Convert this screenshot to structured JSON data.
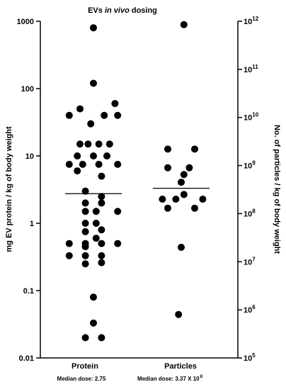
{
  "chart_data": {
    "type": "scatter",
    "title": "EVs in vivo dosing",
    "title_parts": {
      "plain": "EVs ",
      "italic": "in vivo",
      "tail": " dosing"
    },
    "ylabel_left": "mg EV protein / kg of body weight",
    "ylabel_right": "No. of particles / kg of body weight",
    "categories": [
      "Protein",
      "Particles"
    ],
    "left_axis": {
      "scale": "log",
      "ylim": [
        0.01,
        1000
      ],
      "ticks": [
        {
          "value": 0.01,
          "label": "0.01"
        },
        {
          "value": 0.1,
          "label": "0.1"
        },
        {
          "value": 1,
          "label": "1"
        },
        {
          "value": 10,
          "label": "10"
        },
        {
          "value": 100,
          "label": "100"
        },
        {
          "value": 1000,
          "label": "1000"
        }
      ]
    },
    "right_axis": {
      "scale": "log",
      "ylim": [
        100000,
        1000000000000
      ],
      "ticks": [
        {
          "value": 100000,
          "base": "10",
          "exp": "5"
        },
        {
          "value": 1000000,
          "base": "10",
          "exp": "6"
        },
        {
          "value": 10000000,
          "base": "10",
          "exp": "7"
        },
        {
          "value": 100000000,
          "base": "10",
          "exp": "8"
        },
        {
          "value": 1000000000,
          "base": "10",
          "exp": "9"
        },
        {
          "value": 10000000000,
          "base": "10",
          "exp": "10"
        },
        {
          "value": 100000000000,
          "base": "10",
          "exp": "11"
        },
        {
          "value": 1000000000000,
          "base": "10",
          "exp": "12"
        }
      ]
    },
    "series": [
      {
        "category": "Protein",
        "axis": "left",
        "median": 2.75,
        "points": [
          {
            "x": 0,
            "y": 800
          },
          {
            "x": 0,
            "y": 120
          },
          {
            "x": 0.8,
            "y": 60
          },
          {
            "x": -0.5,
            "y": 50
          },
          {
            "x": -0.9,
            "y": 40
          },
          {
            "x": 0.4,
            "y": 40
          },
          {
            "x": 0.9,
            "y": 40
          },
          {
            "x": -0.1,
            "y": 30
          },
          {
            "x": -0.5,
            "y": 15
          },
          {
            "x": -0.2,
            "y": 15
          },
          {
            "x": 0.2,
            "y": 15
          },
          {
            "x": 0.6,
            "y": 15
          },
          {
            "x": -0.6,
            "y": 10
          },
          {
            "x": 0,
            "y": 10
          },
          {
            "x": 0.5,
            "y": 10
          },
          {
            "x": -0.9,
            "y": 7.5
          },
          {
            "x": -0.4,
            "y": 7.5
          },
          {
            "x": 0.2,
            "y": 7.5
          },
          {
            "x": 0.9,
            "y": 7.5
          },
          {
            "x": -0.6,
            "y": 6
          },
          {
            "x": 0.3,
            "y": 5
          },
          {
            "x": -0.3,
            "y": 3
          },
          {
            "x": 0.3,
            "y": 2.5
          },
          {
            "x": -0.3,
            "y": 2
          },
          {
            "x": 0.3,
            "y": 2
          },
          {
            "x": -0.3,
            "y": 1.5
          },
          {
            "x": 0.1,
            "y": 1.5
          },
          {
            "x": 0.9,
            "y": 1.5
          },
          {
            "x": -0.3,
            "y": 1
          },
          {
            "x": 0.1,
            "y": 1
          },
          {
            "x": -0.3,
            "y": 0.75
          },
          {
            "x": 0.3,
            "y": 0.8
          },
          {
            "x": 0.1,
            "y": 0.6
          },
          {
            "x": -0.9,
            "y": 0.5
          },
          {
            "x": -0.3,
            "y": 0.5
          },
          {
            "x": 0.3,
            "y": 0.5
          },
          {
            "x": 0.9,
            "y": 0.5
          },
          {
            "x": -0.3,
            "y": 0.45
          },
          {
            "x": -0.9,
            "y": 0.33
          },
          {
            "x": -0.3,
            "y": 0.33
          },
          {
            "x": 0.3,
            "y": 0.33
          },
          {
            "x": -0.3,
            "y": 0.25
          },
          {
            "x": 0.3,
            "y": 0.26
          },
          {
            "x": 0,
            "y": 0.08
          },
          {
            "x": 0,
            "y": 0.033
          },
          {
            "x": -0.3,
            "y": 0.02
          },
          {
            "x": 0.3,
            "y": 0.02
          }
        ]
      },
      {
        "category": "Particles",
        "axis": "right",
        "median": 337000000,
        "points": [
          {
            "x": 0.1,
            "y": 850000000000
          },
          {
            "x": -0.5,
            "y": 2200000000
          },
          {
            "x": 0.5,
            "y": 2200000000
          },
          {
            "x": -0.5,
            "y": 900000000
          },
          {
            "x": 0.3,
            "y": 900000000
          },
          {
            "x": 0.1,
            "y": 650000000
          },
          {
            "x": 0,
            "y": 450000000
          },
          {
            "x": 0.1,
            "y": 250000000
          },
          {
            "x": -0.7,
            "y": 200000000
          },
          {
            "x": -0.2,
            "y": 200000000
          },
          {
            "x": 0.8,
            "y": 200000000
          },
          {
            "x": -0.5,
            "y": 130000000
          },
          {
            "x": 0.5,
            "y": 130000000
          },
          {
            "x": 0,
            "y": 20000000
          },
          {
            "x": -0.1,
            "y": 800000
          }
        ]
      }
    ],
    "median_labels": {
      "protein": "Median dose: 2.75",
      "particles_text": "Median dose: 3.37 X 10",
      "particles_exp": "8"
    }
  }
}
